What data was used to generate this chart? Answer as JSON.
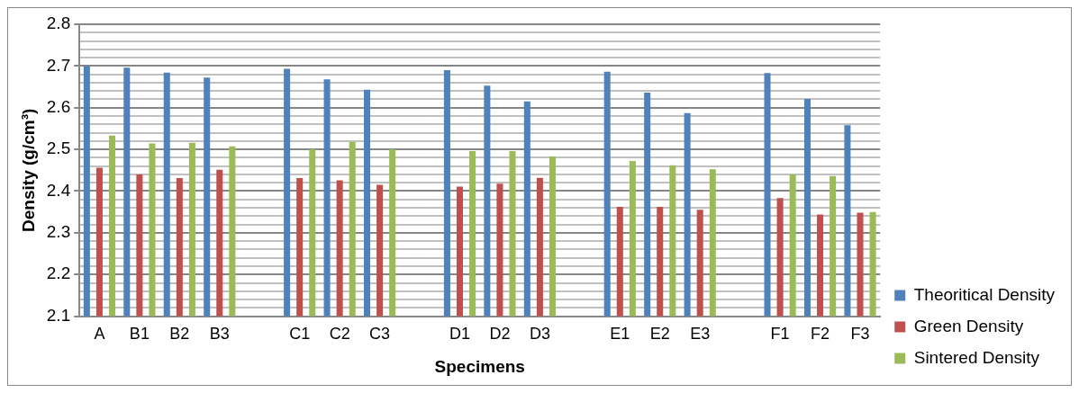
{
  "chart_data": {
    "type": "bar",
    "xlabel": "Specimens",
    "ylabel": "Density (g/cm³)",
    "categories": [
      "A",
      "B1",
      "B2",
      "B3",
      null,
      "C1",
      "C2",
      "C3",
      null,
      "D1",
      "D2",
      "D3",
      null,
      "E1",
      "E2",
      "E3",
      null,
      "F1",
      "F2",
      "F3"
    ],
    "series": [
      {
        "name": "Theoritical Density",
        "color": "#4f81bd",
        "values": [
          2.7,
          2.696,
          2.684,
          2.672,
          null,
          2.693,
          2.668,
          2.643,
          null,
          2.69,
          2.653,
          2.615,
          null,
          2.686,
          2.636,
          2.587,
          null,
          2.683,
          2.621,
          2.558
        ]
      },
      {
        "name": "Green Density",
        "color": "#c0504d",
        "values": [
          2.456,
          2.44,
          2.431,
          2.451,
          null,
          2.431,
          2.426,
          2.415,
          null,
          2.411,
          2.418,
          2.432,
          null,
          2.362,
          2.362,
          2.355,
          null,
          2.383,
          2.344,
          2.348
        ]
      },
      {
        "name": "Sintered Density",
        "color": "#9bbb59",
        "values": [
          2.533,
          2.514,
          2.516,
          2.507,
          null,
          2.5,
          2.518,
          2.5,
          null,
          2.496,
          2.496,
          2.483,
          null,
          2.472,
          2.462,
          2.452,
          null,
          2.44,
          2.436,
          2.35
        ]
      }
    ],
    "ylim": [
      2.1,
      2.8
    ],
    "yticks": [
      2.1,
      {
        "value": 2.12,
        "label": null
      },
      {
        "value": 2.14,
        "label": null
      },
      {
        "value": 2.16,
        "label": null
      },
      {
        "value": 2.18,
        "label": null
      },
      2.2,
      {
        "value": 2.22,
        "label": null
      },
      {
        "value": 2.24,
        "label": null
      },
      {
        "value": 2.26,
        "label": null
      },
      {
        "value": 2.28,
        "label": null
      },
      2.3,
      {
        "value": 2.32,
        "label": null
      },
      {
        "value": 2.34,
        "label": null
      },
      {
        "value": 2.36,
        "label": null
      },
      {
        "value": 2.38,
        "label": null
      },
      2.4,
      {
        "value": 2.42,
        "label": null
      },
      {
        "value": 2.44,
        "label": null
      },
      {
        "value": 2.46,
        "label": null
      },
      {
        "value": 2.48,
        "label": null
      },
      2.5,
      {
        "value": 2.52,
        "label": null
      },
      {
        "value": 2.54,
        "label": null
      },
      {
        "value": 2.56,
        "label": null
      },
      {
        "value": 2.58,
        "label": null
      },
      2.6,
      {
        "value": 2.62,
        "label": null
      },
      {
        "value": 2.64,
        "label": null
      },
      {
        "value": 2.66,
        "label": null
      },
      {
        "value": 2.68,
        "label": null
      },
      2.7,
      {
        "value": 2.72,
        "label": null
      },
      {
        "value": 2.74,
        "label": null
      },
      {
        "value": 2.76,
        "label": null
      },
      {
        "value": 2.78,
        "label": null
      },
      2.8
    ],
    "grid": "y",
    "legend": "bottom right"
  }
}
